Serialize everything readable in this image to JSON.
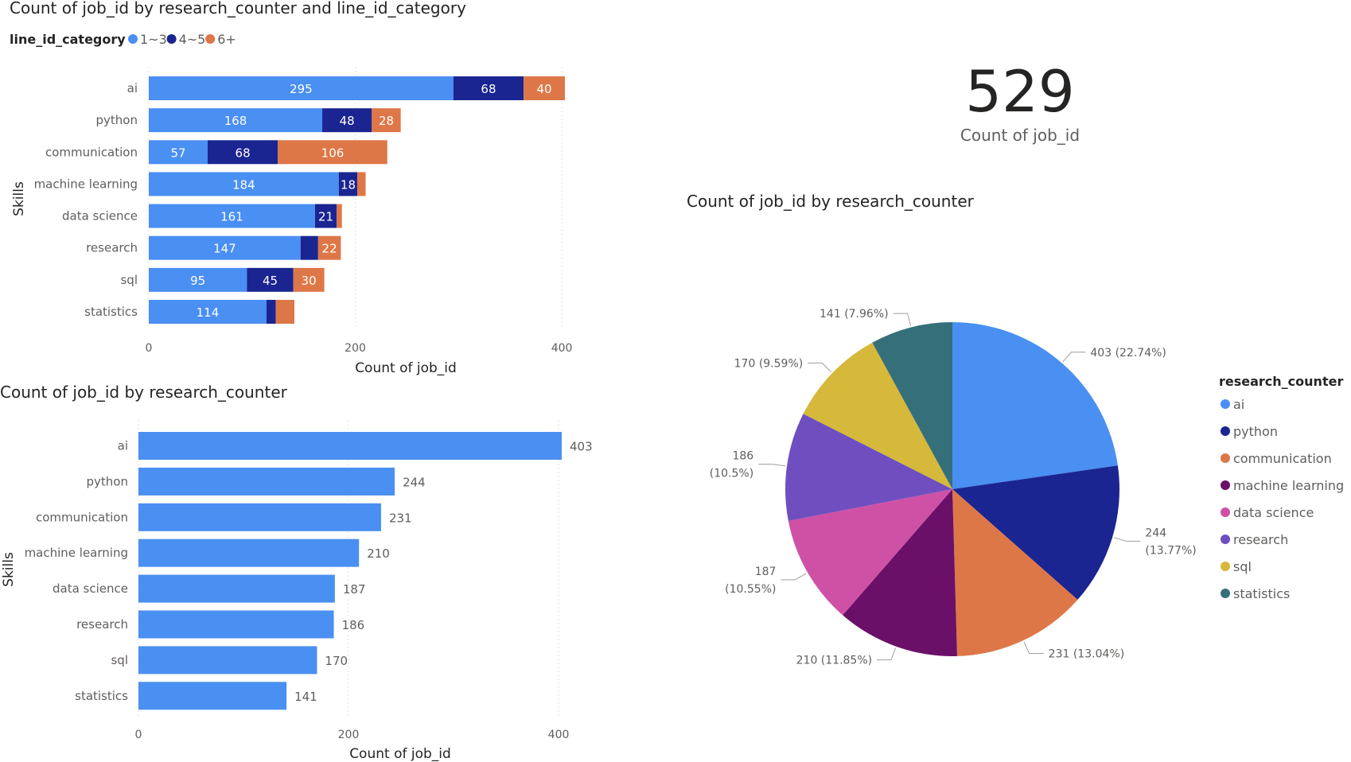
{
  "colors": {
    "c1_3": "#4a8ff2",
    "c4_5": "#1b2591",
    "c6plus": "#de7747",
    "pie": [
      "#4a8ff2",
      "#1b2591",
      "#de7747",
      "#6b1068",
      "#cf51a6",
      "#6f4fc0",
      "#d6b83a",
      "#35707a"
    ]
  },
  "kpi": {
    "value": "529",
    "label": "Count of job_id"
  },
  "chart_data": [
    {
      "type": "bar",
      "orientation": "horizontal",
      "stacked": true,
      "title": "Count of job_id by research_counter and line_id_category",
      "xlabel": "Count of job_id",
      "ylabel": "Skills",
      "legend_title": "line_id_category",
      "legend_position": "top-left",
      "categories": [
        "ai",
        "python",
        "communication",
        "machine learning",
        "data science",
        "research",
        "sql",
        "statistics"
      ],
      "series": [
        {
          "name": "1~3",
          "values": [
            295,
            168,
            57,
            184,
            161,
            147,
            95,
            114
          ]
        },
        {
          "name": "4~5",
          "values": [
            68,
            48,
            68,
            18,
            21,
            17,
            45,
            9
          ]
        },
        {
          "name": "6+",
          "values": [
            40,
            28,
            106,
            8,
            5,
            22,
            30,
            18
          ]
        }
      ],
      "data_labels": [
        [
          "295",
          "68",
          "40"
        ],
        [
          "168",
          "48",
          "28"
        ],
        [
          "57",
          "68",
          "106"
        ],
        [
          "184",
          "18",
          ""
        ],
        [
          "161",
          "21",
          ""
        ],
        [
          "147",
          "",
          "22"
        ],
        [
          "95",
          "45",
          "30"
        ],
        [
          "114",
          "",
          ""
        ]
      ],
      "xticks": [
        0,
        200,
        400
      ],
      "xlim": [
        0,
        403
      ],
      "grid": true
    },
    {
      "type": "bar",
      "orientation": "horizontal",
      "title": "Count of job_id by research_counter",
      "xlabel": "Count of job_id",
      "ylabel": "Skills",
      "categories": [
        "ai",
        "python",
        "communication",
        "machine learning",
        "data science",
        "research",
        "sql",
        "statistics"
      ],
      "values": [
        403,
        244,
        231,
        210,
        187,
        186,
        170,
        141
      ],
      "xticks": [
        0,
        200,
        400
      ],
      "xlim": [
        0,
        403
      ],
      "grid": true
    },
    {
      "type": "pie",
      "title": "Count of job_id by research_counter",
      "legend_title": "research_counter",
      "legend_position": "right",
      "categories": [
        "ai",
        "python",
        "communication",
        "machine learning",
        "data science",
        "research",
        "sql",
        "statistics"
      ],
      "values": [
        403,
        244,
        231,
        210,
        187,
        186,
        170,
        141
      ],
      "labels": [
        [
          "403 (22.74%)"
        ],
        [
          "244",
          "(13.77%)"
        ],
        [
          "231 (13.04%)"
        ],
        [
          "210 (11.85%)"
        ],
        [
          "187",
          "(10.55%)"
        ],
        [
          "186",
          "(10.5%)"
        ],
        [
          "170 (9.59%)"
        ],
        [
          "141 (7.96%)"
        ]
      ]
    }
  ]
}
